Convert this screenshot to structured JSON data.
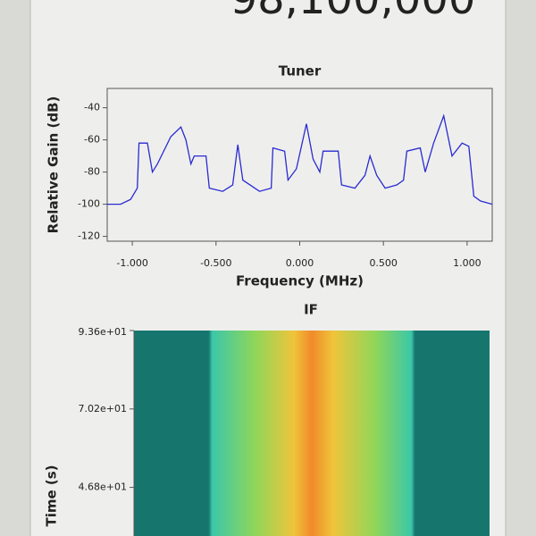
{
  "header": {
    "value": "98,100,000"
  },
  "chart_data": [
    {
      "type": "line",
      "title": "Tuner",
      "x_label": "Frequency (MHz)",
      "y_label": "Relative Gain (dB)",
      "x": [
        -1.15,
        -1.07,
        -1.01,
        -0.97,
        -0.96,
        -0.91,
        -0.88,
        -0.85,
        -0.77,
        -0.71,
        -0.68,
        -0.65,
        -0.63,
        -0.56,
        -0.54,
        -0.46,
        -0.4,
        -0.37,
        -0.34,
        -0.24,
        -0.17,
        -0.16,
        -0.09,
        -0.07,
        -0.02,
        0.04,
        0.08,
        0.12,
        0.14,
        0.23,
        0.25,
        0.33,
        0.39,
        0.42,
        0.46,
        0.51,
        0.58,
        0.62,
        0.64,
        0.72,
        0.75,
        0.8,
        0.86,
        0.91,
        0.97,
        1.01,
        1.04,
        1.08,
        1.15
      ],
      "series": [
        {
          "color": "#2a2ad2",
          "values": [
            -100,
            -100,
            -97,
            -90,
            -62,
            -62,
            -80,
            -75,
            -58,
            -52,
            -60,
            -75,
            -70,
            -70,
            -90,
            -92,
            -88,
            -63,
            -85,
            -92,
            -90,
            -65,
            -67,
            -85,
            -78,
            -50,
            -72,
            -80,
            -67,
            -67,
            -88,
            -90,
            -82,
            -70,
            -82,
            -90,
            -88,
            -85,
            -67,
            -65,
            -80,
            -62,
            -45,
            -70,
            -62,
            -64,
            -95,
            -98,
            -100
          ]
        }
      ],
      "xlim": [
        -1.15,
        1.15
      ],
      "ylim": [
        -123,
        -28
      ],
      "xticks": [
        {
          "value": -1,
          "label": "-1.000"
        },
        {
          "value": -0.5,
          "label": "-0.500"
        },
        {
          "value": 0,
          "label": "0.000"
        },
        {
          "value": 0.5,
          "label": "0.500"
        },
        {
          "value": 1,
          "label": "1.000"
        }
      ],
      "yticks": [
        -40,
        -60,
        -80,
        -100,
        -120
      ]
    },
    {
      "type": "waterfall",
      "title": "IF",
      "y_label": "Time (s)",
      "ylim": [
        32.3,
        93.6
      ],
      "yticks": [
        {
          "value": 93.6,
          "label": "9.36e+01"
        },
        {
          "value": 70.2,
          "label": "7.02e+01"
        },
        {
          "value": 46.8,
          "label": "4.68e+01"
        }
      ]
    }
  ]
}
